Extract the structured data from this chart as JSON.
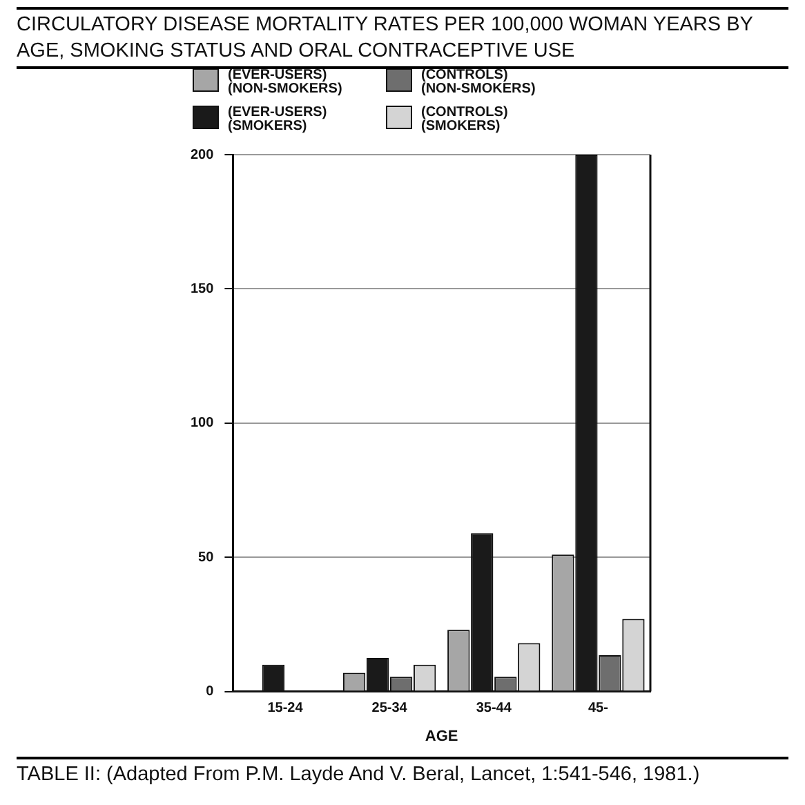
{
  "chart_data": {
    "type": "bar",
    "title": "CIRCULATORY DISEASE MORTALITY RATES PER 100,000 WOMAN YEARS BY AGE, SMOKING STATUS AND ORAL CONTRACEPTIVE USE",
    "xlabel": "AGE",
    "categories": [
      "15-24",
      "25-34",
      "35-44",
      "45-"
    ],
    "series": [
      {
        "name": "(EVER-USERS) (NON-SMOKERS)",
        "color": "#a6a6a6",
        "values": [
          null,
          7,
          23,
          51
        ]
      },
      {
        "name": "(EVER-USERS) (SMOKERS)",
        "color": "#1a1a1a",
        "values": [
          10,
          12.5,
          59,
          200
        ]
      },
      {
        "name": "(CONTROLS) (NON-SMOKERS)",
        "color": "#6e6e6e",
        "values": [
          null,
          5.5,
          5.5,
          13.5
        ]
      },
      {
        "name": "(CONTROLS) (SMOKERS)",
        "color": "#d4d4d4",
        "values": [
          null,
          10,
          18,
          27
        ]
      }
    ],
    "ylim": [
      0,
      200
    ],
    "yticks": [
      0,
      50,
      100,
      150,
      200
    ],
    "grid": "y",
    "legend": "top",
    "annotations": [
      "TABLE II: (Adapted From P.M. Layde And V. Beral, Lancet, 1:541-546, 1981.)"
    ]
  }
}
